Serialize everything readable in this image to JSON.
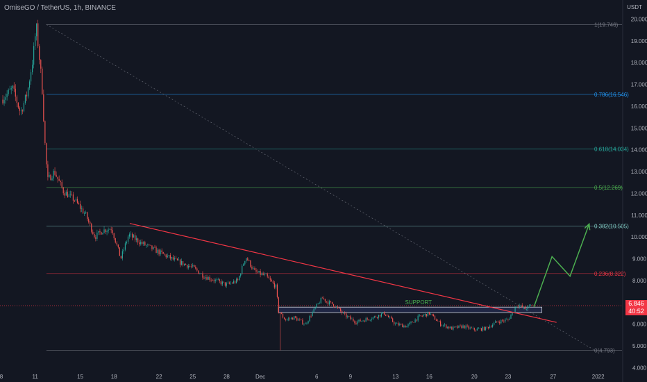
{
  "header": {
    "title": "OmiseGO / TetherUS, 1h, BINANCE",
    "currency": "USDT"
  },
  "price_tag": {
    "price": "6.846",
    "countdown": "40:52"
  },
  "colors": {
    "background": "#131722",
    "bull": "#26a69a",
    "bear": "#ef5350",
    "trendline": "#f23645",
    "projection": "#4caf50",
    "support_box": "#5b6ee1"
  },
  "chart_data": {
    "type": "candlestick",
    "symbol": "OmiseGO / TetherUS",
    "interval": "1h",
    "exchange": "BINANCE",
    "ylim": [
      3.95,
      20.3
    ],
    "yticks": [
      "20.000",
      "19.000",
      "18.000",
      "17.000",
      "16.000",
      "15.000",
      "14.000",
      "13.000",
      "12.000",
      "11.000",
      "10.000",
      "9.000",
      "8.000",
      "7.000",
      "6.000",
      "5.000",
      "4.000"
    ],
    "xticks": [
      "8",
      "11",
      "15",
      "18",
      "22",
      "25",
      "28",
      "Dec",
      "6",
      "9",
      "13",
      "16",
      "20",
      "23",
      "27",
      "2022"
    ],
    "price_path": [
      [
        8,
        16.3
      ],
      [
        9,
        16.8
      ],
      [
        9.7,
        15.7
      ],
      [
        10.3,
        16.6
      ],
      [
        10.8,
        18.2
      ],
      [
        11.1,
        19.7
      ],
      [
        11.6,
        17.0
      ],
      [
        11.9,
        14.0
      ],
      [
        12.1,
        12.6
      ],
      [
        12.7,
        13.0
      ],
      [
        13.5,
        12.1
      ],
      [
        14.5,
        11.7
      ],
      [
        15.5,
        11.0
      ],
      [
        16.3,
        10.0
      ],
      [
        17.0,
        10.3
      ],
      [
        17.8,
        10.4
      ],
      [
        18.6,
        9.0
      ],
      [
        19.3,
        10.1
      ],
      [
        20.5,
        9.7
      ],
      [
        22,
        9.3
      ],
      [
        23.5,
        8.9
      ],
      [
        25,
        8.6
      ],
      [
        26,
        8.2
      ],
      [
        27,
        8.0
      ],
      [
        28,
        7.8
      ],
      [
        29,
        8.0
      ],
      [
        29.7,
        9.1
      ],
      [
        30.5,
        8.4
      ],
      [
        31.5,
        8.2
      ],
      [
        32.4,
        7.7
      ],
      [
        32.6,
        6.6
      ],
      [
        33.2,
        6.2
      ],
      [
        34,
        6.3
      ],
      [
        35,
        6.0
      ],
      [
        35.7,
        6.6
      ],
      [
        36.5,
        7.2
      ],
      [
        37,
        7.0
      ],
      [
        37.5,
        6.9
      ],
      [
        38.5,
        6.4
      ],
      [
        39.5,
        6.1
      ],
      [
        41,
        6.3
      ],
      [
        42,
        6.5
      ],
      [
        43,
        6.0
      ],
      [
        44,
        5.9
      ],
      [
        45,
        6.3
      ],
      [
        46,
        6.5
      ],
      [
        47,
        6.0
      ],
      [
        48,
        5.8
      ],
      [
        49,
        5.9
      ],
      [
        50,
        5.75
      ],
      [
        51,
        5.8
      ],
      [
        52,
        6.1
      ],
      [
        53,
        6.2
      ],
      [
        53.8,
        6.9
      ],
      [
        54.5,
        6.7
      ],
      [
        55.2,
        6.9
      ]
    ],
    "wick_extremes": [
      {
        "x": 11.1,
        "high": 19.75
      },
      {
        "x": 32.7,
        "low": 4.8
      }
    ],
    "fibonacci": [
      {
        "ratio": "1",
        "price": 19.746,
        "label": "1(19.746)",
        "color": "#787b86"
      },
      {
        "ratio": "0.786",
        "price": 16.546,
        "label": "0.786(16.546)",
        "color": "#2196f3"
      },
      {
        "ratio": "0.618",
        "price": 14.034,
        "label": "0.618(14.034)",
        "color": "#26a69a"
      },
      {
        "ratio": "0.5",
        "price": 12.269,
        "label": "0.5(12.269)",
        "color": "#4caf50"
      },
      {
        "ratio": "0.382",
        "price": 10.505,
        "label": "0.382(10.505)",
        "color": "#80cbc4"
      },
      {
        "ratio": "0.236",
        "price": 8.322,
        "label": "0.236(8.322)",
        "color": "#f23645"
      },
      {
        "ratio": "0",
        "price": 4.793,
        "label": "0(4.793)",
        "color": "#787b86"
      }
    ],
    "fib_start_x": 12,
    "fib_diagonal": {
      "from": [
        12,
        19.746
      ],
      "to": [
        60.7,
        4.793
      ]
    },
    "trendline": {
      "from": [
        19.4,
        10.62
      ],
      "to": [
        57.3,
        6.08
      ]
    },
    "support_zone": {
      "label": "SUPPORT",
      "x_from": 32.6,
      "x_to": 56.0,
      "low": 6.53,
      "high": 6.78
    },
    "projection_path": [
      [
        55.3,
        6.8
      ],
      [
        56.9,
        9.1
      ],
      [
        58.5,
        8.2
      ],
      [
        60.2,
        10.6
      ]
    ],
    "current_price": 6.846
  }
}
